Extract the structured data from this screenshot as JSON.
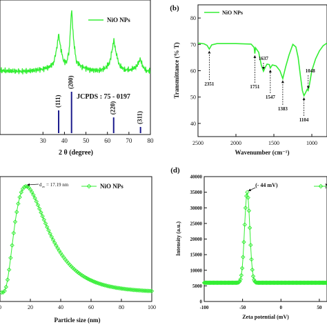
{
  "chart_data": [
    {
      "panel_label": "",
      "type": "line",
      "xlabel": "2 θ (degree)",
      "ylabel": "",
      "xlim": [
        10,
        80
      ],
      "xticks": [
        "30",
        "40",
        "50",
        "60",
        "70",
        "80"
      ],
      "legend": "NiO NPs",
      "legend_position": "top-right",
      "series_color": "#33ee33",
      "reference_label": "JCPDS : 75 - 0197",
      "reference_color": "#1a1a8c",
      "x": [
        10,
        20,
        25,
        30,
        33,
        35,
        36.5,
        37.3,
        38,
        39.5,
        41,
        42.3,
        43.3,
        44.2,
        45.5,
        48,
        52,
        56,
        59,
        61,
        62.3,
        63,
        63.8,
        65.5,
        68,
        71,
        73.5,
        75.3,
        76.5,
        78,
        80
      ],
      "y": [
        0.14,
        0.13,
        0.14,
        0.16,
        0.19,
        0.24,
        0.44,
        0.62,
        0.47,
        0.27,
        0.24,
        0.42,
        0.95,
        0.55,
        0.26,
        0.19,
        0.15,
        0.14,
        0.17,
        0.24,
        0.42,
        0.54,
        0.4,
        0.21,
        0.15,
        0.15,
        0.19,
        0.29,
        0.19,
        0.14,
        0.13
      ],
      "reference_peaks": [
        {
          "hkl": "(111)",
          "x": 37.3,
          "h": 0.55
        },
        {
          "hkl": "(200)",
          "x": 43.3,
          "h": 1.0
        },
        {
          "hkl": "(220)",
          "x": 62.9,
          "h": 0.38
        },
        {
          "hkl": "(311)",
          "x": 75.4,
          "h": 0.15
        }
      ]
    },
    {
      "panel_label": "(b)",
      "type": "line",
      "xlabel": "Wavenumber (cm⁻¹)",
      "ylabel": "Transmittance (% T)",
      "xlim": [
        2500,
        800
      ],
      "ylim": [
        35,
        85
      ],
      "xticks": [
        2500,
        2000,
        1500,
        1000
      ],
      "yticks": [
        40,
        50,
        60,
        70,
        80
      ],
      "legend": "NiO NPs",
      "legend_position": "top-left",
      "series_color": "#33ee33",
      "x": [
        2500,
        2420,
        2380,
        2351,
        2320,
        2250,
        2000,
        1800,
        1760,
        1751,
        1742,
        1700,
        1665,
        1637,
        1610,
        1590,
        1560,
        1547,
        1520,
        1470,
        1420,
        1383,
        1345,
        1300,
        1250,
        1210,
        1180,
        1150,
        1125,
        1104,
        1085,
        1060,
        1048,
        1035,
        1000,
        950,
        900,
        850,
        800
      ],
      "y": [
        70.5,
        70.2,
        69.6,
        68.2,
        69.8,
        70.3,
        70.3,
        70.1,
        68.8,
        66.5,
        68.7,
        67.0,
        62.0,
        59.8,
        61.5,
        62.5,
        62.3,
        61.0,
        62.2,
        61.8,
        60.0,
        57.0,
        61.5,
        66.0,
        70.0,
        69.0,
        65.0,
        58.0,
        52.5,
        50.5,
        51.5,
        53.0,
        52.5,
        54.0,
        60.0,
        64.5,
        67.5,
        69.5,
        70.5
      ],
      "annotations": [
        {
          "text": "2351",
          "x": 2351
        },
        {
          "text": "1751",
          "x": 1751
        },
        {
          "text": "1637",
          "x": 1637
        },
        {
          "text": "1547",
          "x": 1547
        },
        {
          "text": "1383",
          "x": 1383
        },
        {
          "text": "1104",
          "x": 1104
        },
        {
          "text": "1048",
          "x": 1048
        }
      ]
    },
    {
      "panel_label": "",
      "type": "line",
      "xlabel": "Particle size (nm)",
      "ylabel": "",
      "xlim": [
        0,
        100
      ],
      "xticks": [
        0,
        20,
        40,
        60,
        80,
        100
      ],
      "legend": "NiO NPs",
      "legend_position": "top-right",
      "series_color": "#33ee33",
      "marker": "diamond",
      "annotation": {
        "sub_symbol": "d",
        "sub_index": "av",
        "value": "= 17.19 nm",
        "x": 17.19
      },
      "distribution": {
        "type": "lognormal",
        "mode": 17.19,
        "sigma": 0.6,
        "x_start": 1,
        "x_end": 100,
        "step": 1
      }
    },
    {
      "panel_label": "(d)",
      "type": "line",
      "xlabel": "Zeta potential (mV)",
      "ylabel": "Intensity (a.u.)",
      "xlim": [
        -100,
        60
      ],
      "ylim": [
        0,
        40000
      ],
      "xticks": [
        -100,
        -50,
        0,
        50
      ],
      "yticks": [
        0,
        5000,
        10000,
        15000,
        20000,
        25000,
        30000,
        35000,
        40000
      ],
      "legend": "N",
      "legend_position": "top-right",
      "series_color": "#33ee33",
      "marker": "diamond",
      "annotation": {
        "text": "(- 44 mV)",
        "x": -44,
        "y": 35000
      },
      "distribution": {
        "type": "gaussian",
        "center": -44,
        "sigma": 3.4,
        "baseline": 6000,
        "amplitude": 29000,
        "x_start": -100,
        "x_end": 60,
        "step": 1.1
      }
    }
  ]
}
